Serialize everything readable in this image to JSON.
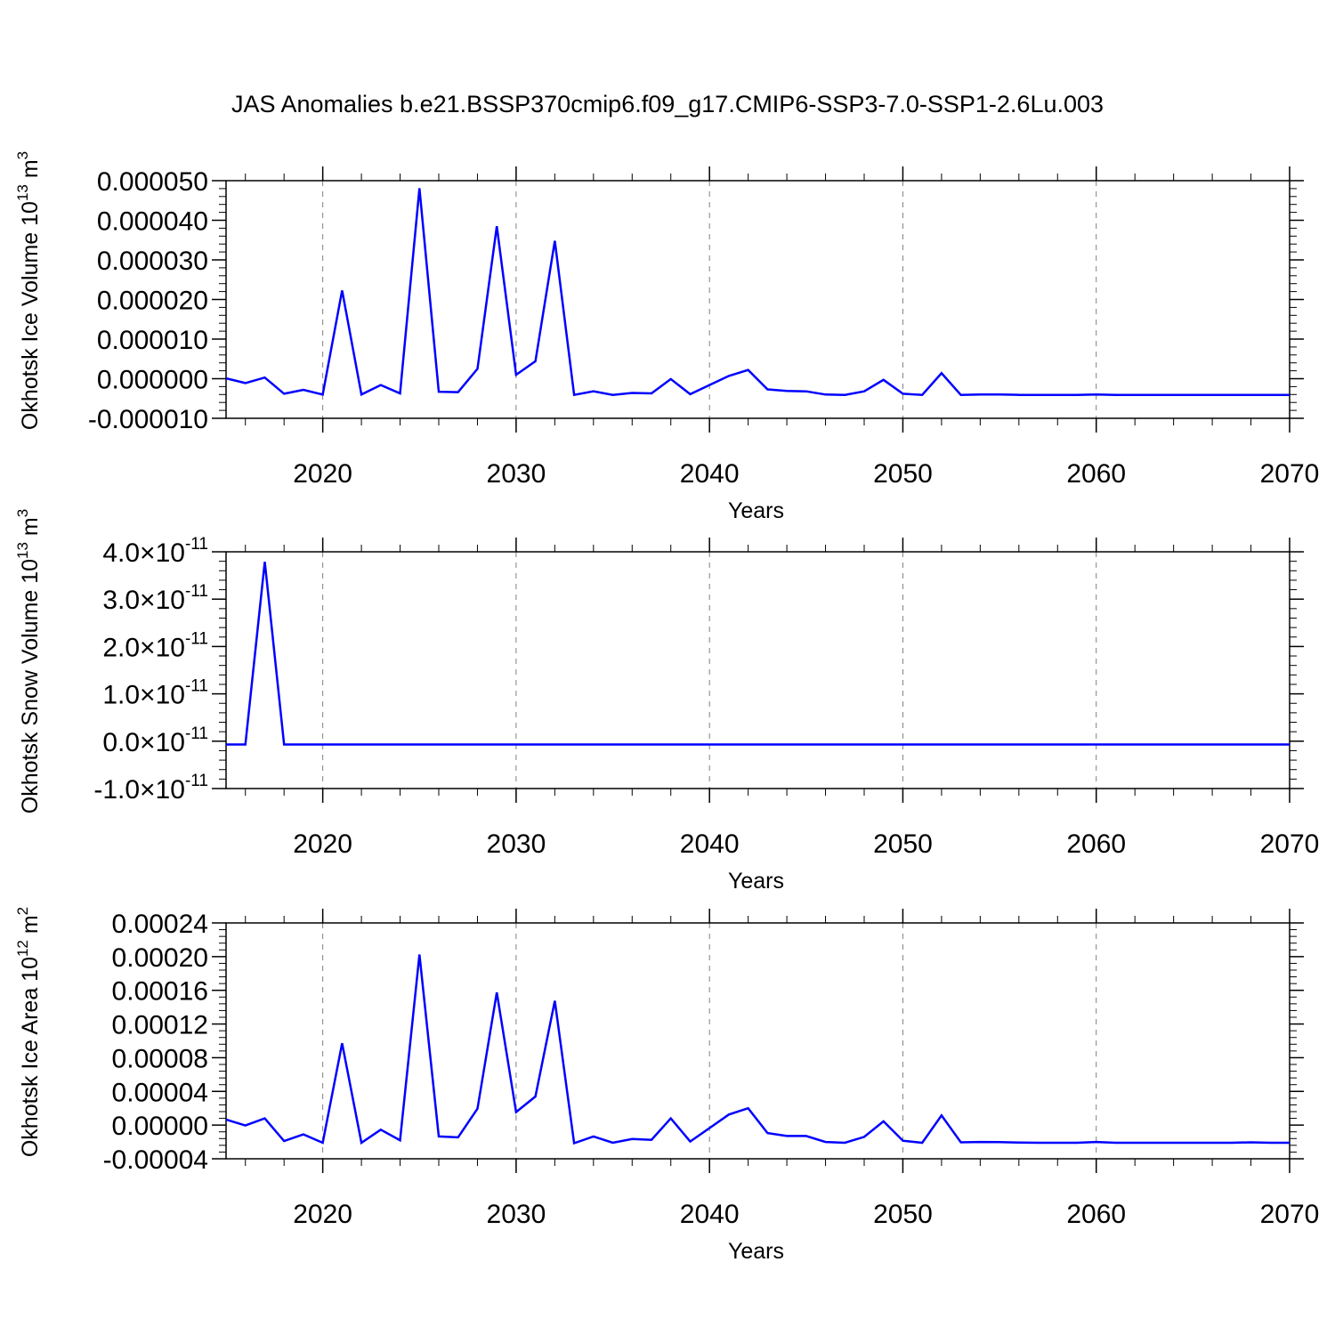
{
  "title": "JAS Anomalies b.e21.BSSP370cmip6.f09_g17.CMIP6-SSP3-7.0-SSP1-2.6Lu.003",
  "colors": {
    "line": "#0000ff",
    "axis": "#000000",
    "grid": "#808080"
  },
  "chart_data": [
    {
      "type": "line",
      "ylabel": "Okhotsk Ice Volume 10",
      "ylabel_exp": "13",
      "ylabel_unit": "m",
      "ylabel_unit_exp": "3",
      "xlabel": "Years",
      "xlim": [
        2015,
        2070
      ],
      "ylim": [
        -1e-05,
        5e-05
      ],
      "xticks": [
        2020,
        2030,
        2040,
        2050,
        2060,
        2070
      ],
      "yticks": [
        {
          "v": -1e-05,
          "label": "-0.000010"
        },
        {
          "v": 0.0,
          "label": "0.000000"
        },
        {
          "v": 1e-05,
          "label": "0.000010"
        },
        {
          "v": 2e-05,
          "label": "0.000020"
        },
        {
          "v": 3e-05,
          "label": "0.000030"
        },
        {
          "v": 4e-05,
          "label": "0.000040"
        },
        {
          "v": 5e-05,
          "label": "0.000050"
        }
      ],
      "grid": "dashed vertical at major x ticks",
      "x": [
        2015,
        2016,
        2017,
        2018,
        2019,
        2020,
        2021,
        2022,
        2023,
        2024,
        2025,
        2026,
        2027,
        2028,
        2029,
        2030,
        2031,
        2032,
        2033,
        2034,
        2035,
        2036,
        2037,
        2038,
        2039,
        2040,
        2041,
        2042,
        2043,
        2044,
        2045,
        2046,
        2047,
        2048,
        2049,
        2050,
        2051,
        2052,
        2053,
        2054,
        2055,
        2056,
        2057,
        2058,
        2059,
        2060,
        2061,
        2062,
        2063,
        2064,
        2065,
        2066,
        2067,
        2068,
        2069,
        2070
      ],
      "y": [
        1e-07,
        -1.1e-06,
        3e-07,
        -3.8e-06,
        -2.8e-06,
        -4e-06,
        2.23e-05,
        -4e-06,
        -1.6e-06,
        -3.7e-06,
        4.81e-05,
        -3.3e-06,
        -3.4e-06,
        2.5e-06,
        3.85e-05,
        1e-06,
        4.4e-06,
        3.48e-05,
        -4.1e-06,
        -3.2e-06,
        -4.1e-06,
        -3.6e-06,
        -3.7e-06,
        -1e-07,
        -3.9e-06,
        -1.6e-06,
        7e-07,
        2.2e-06,
        -2.7e-06,
        -3.1e-06,
        -3.2e-06,
        -4e-06,
        -4.1e-06,
        -3.2e-06,
        -3e-07,
        -3.8e-06,
        -4.1e-06,
        1.4e-06,
        -4.1e-06,
        -4e-06,
        -4e-06,
        -4.1e-06,
        -4.1e-06,
        -4.1e-06,
        -4.1e-06,
        -4e-06,
        -4.1e-06,
        -4.1e-06,
        -4.1e-06,
        -4.1e-06,
        -4.1e-06,
        -4.1e-06,
        -4.1e-06,
        -4.1e-06,
        -4.1e-06,
        -4.1e-06
      ]
    },
    {
      "type": "line",
      "ylabel": "Okhotsk Snow Volume 10",
      "ylabel_exp": "13",
      "ylabel_unit": "m",
      "ylabel_unit_exp": "3",
      "xlabel": "Years",
      "xlim": [
        2015,
        2070
      ],
      "ylim": [
        -1e-11,
        4e-11
      ],
      "xticks": [
        2020,
        2030,
        2040,
        2050,
        2060,
        2070
      ],
      "yticks": [
        {
          "v": -1e-11,
          "label": "-1.0",
          "times": "×10",
          "exp": "-11"
        },
        {
          "v": 0.0,
          "label": "0.0",
          "times": "×10",
          "exp": "-11"
        },
        {
          "v": 1e-11,
          "label": "1.0",
          "times": "×10",
          "exp": "-11"
        },
        {
          "v": 2e-11,
          "label": "2.0",
          "times": "×10",
          "exp": "-11"
        },
        {
          "v": 3e-11,
          "label": "3.0",
          "times": "×10",
          "exp": "-11"
        },
        {
          "v": 4e-11,
          "label": "4.0",
          "times": "×10",
          "exp": "-11"
        }
      ],
      "grid": "dashed vertical at major x ticks",
      "x": [
        2015,
        2016,
        2017,
        2018,
        2019,
        2020,
        2021,
        2022,
        2023,
        2024,
        2025,
        2026,
        2027,
        2028,
        2029,
        2030,
        2031,
        2032,
        2033,
        2034,
        2035,
        2036,
        2037,
        2038,
        2039,
        2040,
        2041,
        2042,
        2043,
        2044,
        2045,
        2046,
        2047,
        2048,
        2049,
        2050,
        2051,
        2052,
        2053,
        2054,
        2055,
        2056,
        2057,
        2058,
        2059,
        2060,
        2061,
        2062,
        2063,
        2064,
        2065,
        2066,
        2067,
        2068,
        2069,
        2070
      ],
      "y": [
        -7e-13,
        -7e-13,
        3.79e-11,
        -7e-13,
        -7e-13,
        -7e-13,
        -7e-13,
        -7e-13,
        -7e-13,
        -7e-13,
        -7e-13,
        -7e-13,
        -7e-13,
        -7e-13,
        -7e-13,
        -7e-13,
        -7e-13,
        -7e-13,
        -7e-13,
        -7e-13,
        -7e-13,
        -7e-13,
        -7e-13,
        -7e-13,
        -7e-13,
        -7e-13,
        -7e-13,
        -7e-13,
        -7e-13,
        -7e-13,
        -7e-13,
        -7e-13,
        -7e-13,
        -7e-13,
        -7e-13,
        -7e-13,
        -7e-13,
        -7e-13,
        -7e-13,
        -7e-13,
        -7e-13,
        -7e-13,
        -7e-13,
        -7e-13,
        -7e-13,
        -7e-13,
        -7e-13,
        -7e-13,
        -7e-13,
        -7e-13,
        -7e-13,
        -7e-13,
        -7e-13,
        -7e-13,
        -7e-13,
        -7e-13
      ]
    },
    {
      "type": "line",
      "ylabel": "Okhotsk Ice Area 10",
      "ylabel_exp": "12",
      "ylabel_unit": "m",
      "ylabel_unit_exp": "2",
      "xlabel": "Years",
      "xlim": [
        2015,
        2070
      ],
      "ylim": [
        -4e-05,
        0.00024
      ],
      "xticks": [
        2020,
        2030,
        2040,
        2050,
        2060,
        2070
      ],
      "yticks": [
        {
          "v": -4e-05,
          "label": "-0.00004"
        },
        {
          "v": 0.0,
          "label": "0.00000"
        },
        {
          "v": 4e-05,
          "label": "0.00004"
        },
        {
          "v": 8e-05,
          "label": "0.00008"
        },
        {
          "v": 0.00012,
          "label": "0.00012"
        },
        {
          "v": 0.00016,
          "label": "0.00016"
        },
        {
          "v": 0.0002,
          "label": "0.00020"
        },
        {
          "v": 0.00024,
          "label": "0.00024"
        }
      ],
      "grid": "dashed vertical at major x ticks",
      "x": [
        2015,
        2016,
        2017,
        2018,
        2019,
        2020,
        2021,
        2022,
        2023,
        2024,
        2025,
        2026,
        2027,
        2028,
        2029,
        2030,
        2031,
        2032,
        2033,
        2034,
        2035,
        2036,
        2037,
        2038,
        2039,
        2040,
        2041,
        2042,
        2043,
        2044,
        2045,
        2046,
        2047,
        2048,
        2049,
        2050,
        2051,
        2052,
        2053,
        2054,
        2055,
        2056,
        2057,
        2058,
        2059,
        2060,
        2061,
        2062,
        2063,
        2064,
        2065,
        2066,
        2067,
        2068,
        2069,
        2070
      ],
      "y": [
        6.5e-06,
        -5e-07,
        8e-06,
        -1.9e-05,
        -1.1e-05,
        -2.1e-05,
        9.7e-05,
        -2.1e-05,
        -5.5e-06,
        -1.8e-05,
        0.0002025,
        -1.35e-05,
        -1.45e-05,
        1.95e-05,
        0.0001575,
        1.55e-05,
        3.4e-05,
        0.0001475,
        -2.15e-05,
        -1.35e-05,
        -2.1e-05,
        -1.65e-05,
        -1.75e-05,
        8e-06,
        -1.95e-05,
        -3.5e-06,
        1.25e-05,
        2e-05,
        -9.5e-06,
        -1.3e-05,
        -1.3e-05,
        -2e-05,
        -2.1e-05,
        -1.4e-05,
        4.5e-06,
        -1.85e-05,
        -2.1e-05,
        1.15e-05,
        -2.05e-05,
        -2e-05,
        -2.02e-05,
        -2.08e-05,
        -2.1e-05,
        -2.1e-05,
        -2.1e-05,
        -2e-05,
        -2.1e-05,
        -2.1e-05,
        -2.1e-05,
        -2.1e-05,
        -2.1e-05,
        -2.1e-05,
        -2.1e-05,
        -2.05e-05,
        -2.1e-05,
        -2.1e-05
      ]
    }
  ]
}
